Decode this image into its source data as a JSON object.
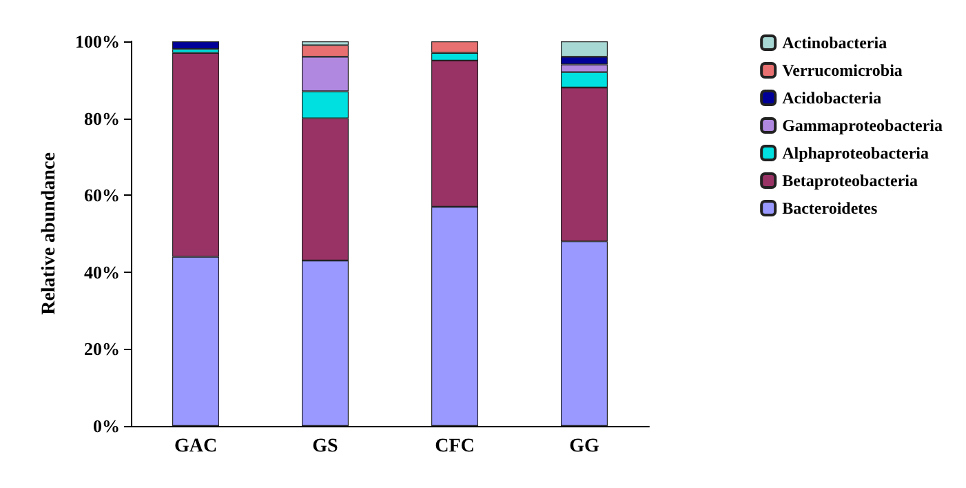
{
  "chart_data": {
    "type": "bar",
    "stacked": true,
    "ylabel": "Relative abundance",
    "categories": [
      "GAC",
      "GS",
      "CFC",
      "GG"
    ],
    "series": [
      {
        "name": "Bacteroidetes",
        "color": "#9999ff",
        "values": [
          44,
          43,
          57,
          48
        ]
      },
      {
        "name": "Betaproteobacteria",
        "color": "#993366",
        "values": [
          53,
          37,
          38,
          40
        ]
      },
      {
        "name": "Alphaproteobacteria",
        "color": "#00e0e0",
        "values": [
          1,
          7,
          2,
          4
        ]
      },
      {
        "name": "Gammaproteobacteria",
        "color": "#b088e0",
        "values": [
          0,
          9,
          0,
          2
        ]
      },
      {
        "name": "Acidobacteria",
        "color": "#000099",
        "values": [
          2,
          0,
          0,
          2
        ]
      },
      {
        "name": "Verrucomicrobia",
        "color": "#e87070",
        "values": [
          0,
          3,
          3,
          0
        ]
      },
      {
        "name": "Actinobacteria",
        "color": "#a8d8d4",
        "values": [
          0,
          1,
          0,
          4
        ]
      }
    ],
    "ylim": [
      0,
      100
    ],
    "yticks": [
      {
        "value": 0,
        "label": "0%"
      },
      {
        "value": 20,
        "label": "20%"
      },
      {
        "value": 40,
        "label": "40%"
      },
      {
        "value": 60,
        "label": "60%"
      },
      {
        "value": 80,
        "label": "80%"
      },
      {
        "value": 100,
        "label": "100%"
      }
    ],
    "grid": false,
    "legend": "right"
  }
}
